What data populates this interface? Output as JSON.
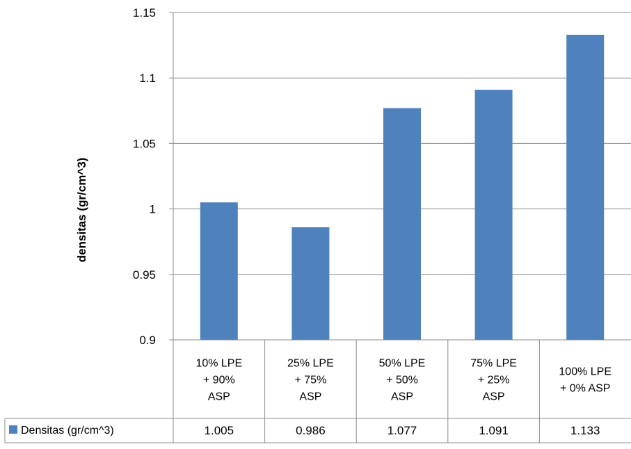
{
  "chart_data": {
    "type": "bar",
    "ylabel": "densitas (gr/cm^3)",
    "ylim": [
      0.9,
      1.15
    ],
    "yticks": [
      "0.9",
      "0.95",
      "1",
      "1.05",
      "1.1",
      "1.15"
    ],
    "grid": true,
    "categories": [
      [
        "10% LPE",
        "+ 90%",
        "ASP"
      ],
      [
        "25% LPE",
        "+ 75%",
        "ASP"
      ],
      [
        "50% LPE",
        "+ 50%",
        "ASP"
      ],
      [
        "75% LPE",
        "+ 25%",
        "ASP"
      ],
      [
        "100% LPE",
        "+ 0% ASP"
      ]
    ],
    "series": [
      {
        "name": "Densitas (gr/cm^3)",
        "values": [
          1.005,
          0.986,
          1.077,
          1.091,
          1.133
        ],
        "labels": [
          "1.005",
          "0.986",
          "1.077",
          "1.091",
          "1.133"
        ],
        "color": "#4f81bd"
      }
    ],
    "legend": "data-table-row"
  }
}
